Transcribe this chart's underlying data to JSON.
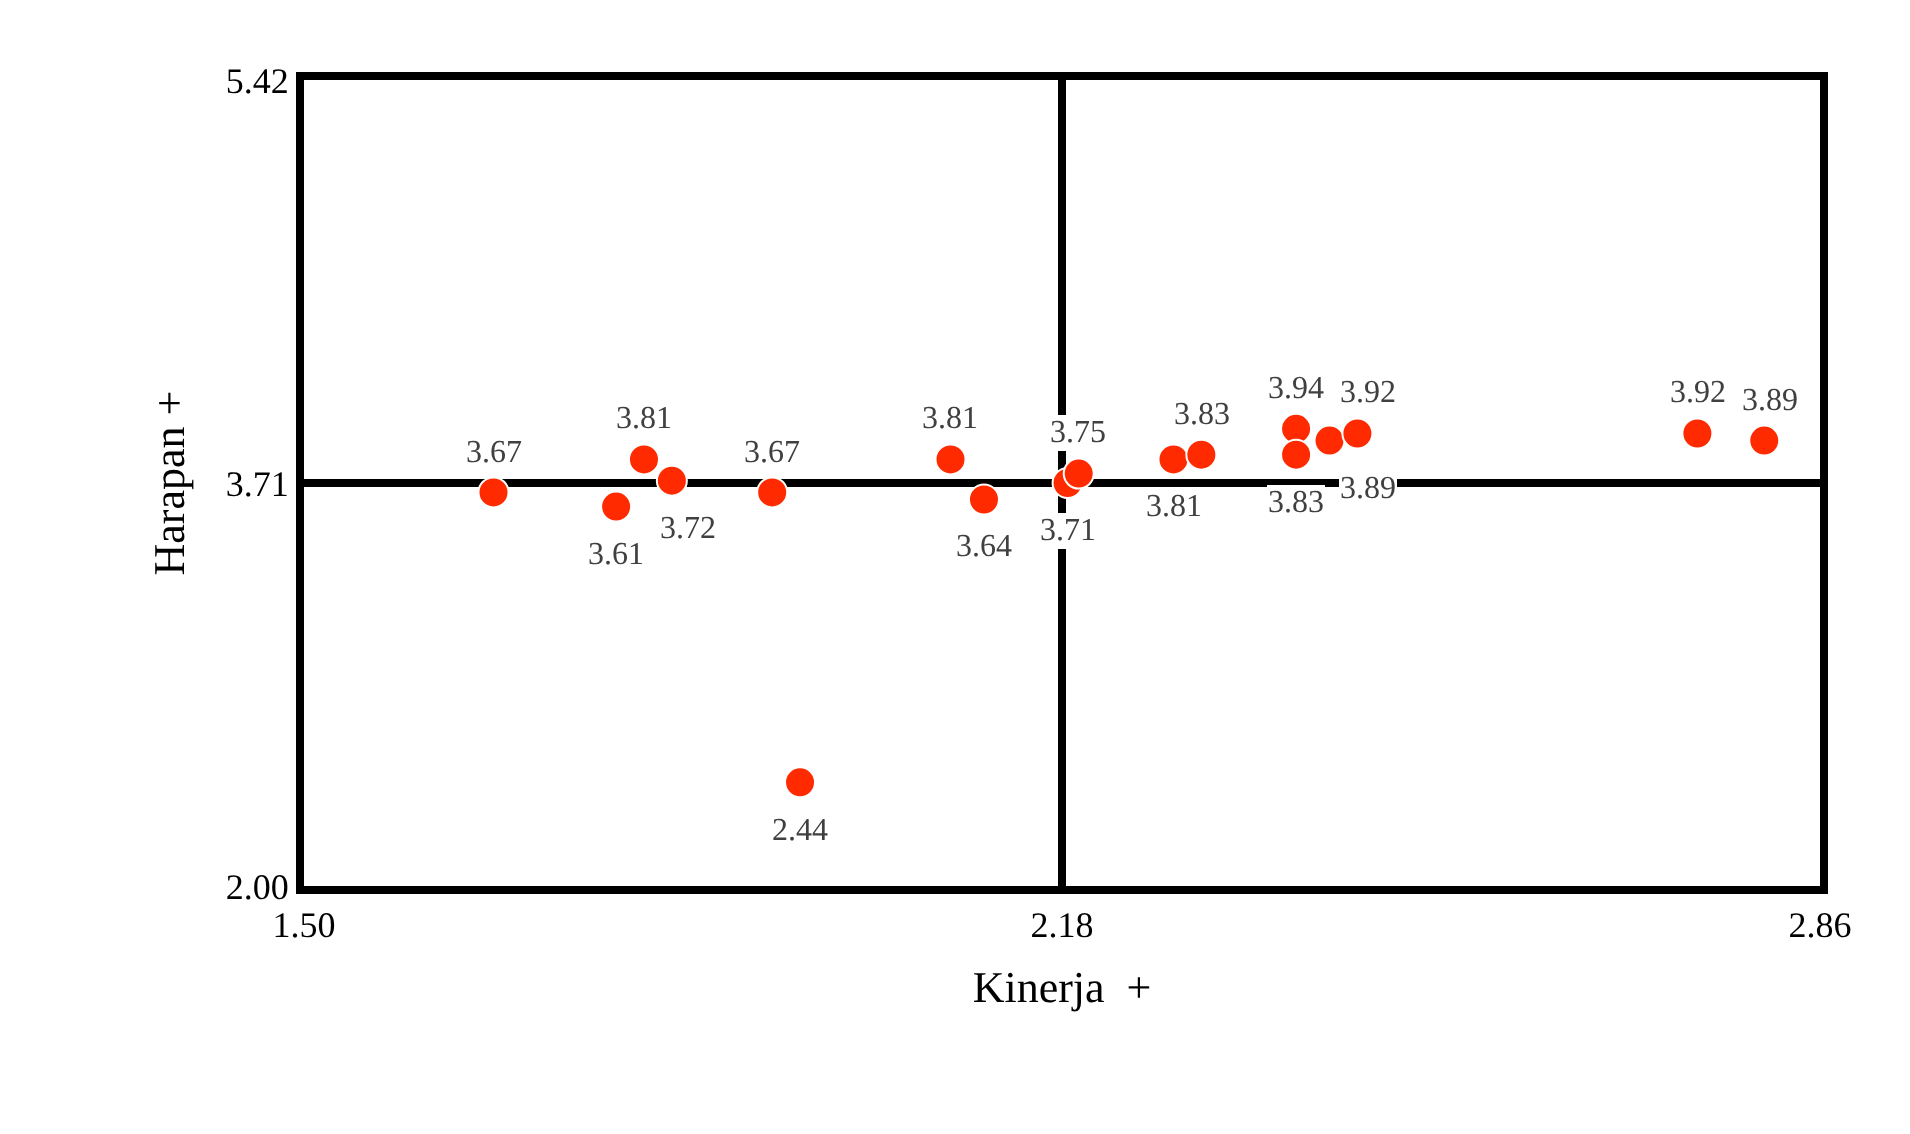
{
  "chart_data": {
    "type": "scatter",
    "xlabel": "Kinerja  +",
    "ylabel": "Harapan +",
    "x": [
      1.67,
      1.78,
      1.805,
      1.83,
      1.92,
      1.945,
      2.08,
      2.11,
      2.185,
      2.195,
      2.28,
      2.305,
      2.39,
      2.39,
      2.42,
      2.445,
      2.75,
      2.81
    ],
    "series": [
      {
        "color": "#ff2a00",
        "values": [
          3.67,
          3.61,
          3.81,
          3.72,
          3.67,
          2.44,
          3.81,
          3.64,
          3.71,
          3.75,
          3.81,
          3.83,
          3.94,
          3.83,
          3.89,
          3.92,
          3.92,
          3.89
        ]
      }
    ],
    "data_labels": true,
    "marker": "circle",
    "grid": false,
    "xlim": [
      1.5,
      2.86
    ],
    "ylim": [
      2.0,
      5.42
    ],
    "xticks": [
      {
        "value": 1.5,
        "label": "1.50"
      },
      {
        "value": 2.18,
        "label": "2.18"
      },
      {
        "value": 2.86,
        "label": "2.86"
      }
    ],
    "yticks": [
      {
        "value": 2.0,
        "label": "2.00"
      },
      {
        "value": 3.71,
        "label": "3.71"
      },
      {
        "value": 5.42,
        "label": "5.42"
      }
    ],
    "ref_lines": [
      {
        "axis": "x",
        "value": 2.18,
        "color": "#000000"
      },
      {
        "axis": "y",
        "value": 3.71,
        "color": "#000000"
      }
    ]
  }
}
